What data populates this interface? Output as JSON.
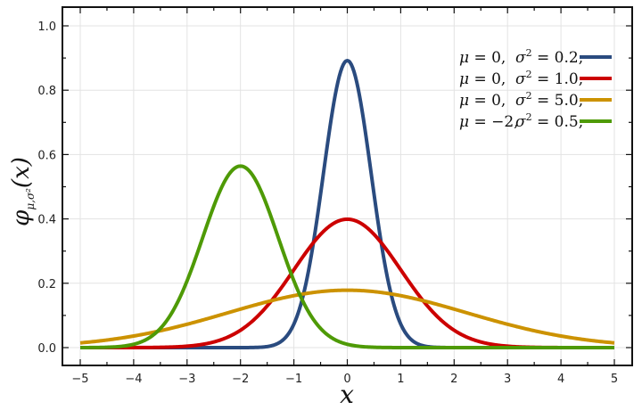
{
  "chart_data": {
    "type": "line",
    "xlabel": "x",
    "ylabel_main": "φ",
    "ylabel_sub": "μ,σ²",
    "ylabel_arg": "(x)",
    "xlim": [
      -5,
      5
    ],
    "ylim": [
      0,
      1.0
    ],
    "xticks": [
      "−5",
      "−4",
      "−3",
      "−2",
      "−1",
      "0",
      "1",
      "2",
      "3",
      "4",
      "5"
    ],
    "yticks": [
      "0.0",
      "0.2",
      "0.4",
      "0.6",
      "0.8",
      "1.0"
    ],
    "grid": true,
    "legend_position": "top-right",
    "series": [
      {
        "mu": 0,
        "sigma2": 0.2,
        "mu_label": "0,",
        "sigma2_label": "0.2,",
        "color": "#2a4b7f"
      },
      {
        "mu": 0,
        "sigma2": 1.0,
        "mu_label": "0,",
        "sigma2_label": "1.0,",
        "color": "#cc0000"
      },
      {
        "mu": 0,
        "sigma2": 5.0,
        "mu_label": "0,",
        "sigma2_label": "5.0,",
        "color": "#cc9200"
      },
      {
        "mu": -2,
        "sigma2": 0.5,
        "mu_label": "−2,",
        "sigma2_label": "0.5,",
        "color": "#4e9a06"
      }
    ]
  }
}
